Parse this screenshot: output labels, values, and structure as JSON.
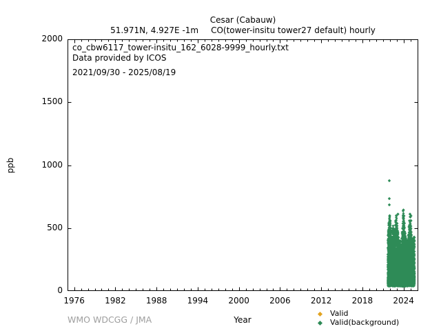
{
  "header": {
    "station": "Cesar (Cabauw)",
    "location": "51.971N, 4.927E -1m",
    "parameter": "CO(tower-insitu tower27 default) hourly"
  },
  "annotation": {
    "filename": "co_cbw6117_tower-insitu_162_6028-9999_hourly.txt",
    "provider": "Data provided by ICOS",
    "period": "2021/09/30 - 2025/08/19"
  },
  "footer": {
    "attribution": "WMO WDCGG / JMA",
    "xlabel": "Year"
  },
  "legend": [
    {
      "label": "Valid",
      "color": "#e2a321"
    },
    {
      "label": "Valid(background)",
      "color": "#2e8b57"
    }
  ],
  "colors": {
    "valid": "#e2a321",
    "valid_background": "#2e8b57",
    "axis": "#000000",
    "attribution_gray": "#9e9e9e"
  },
  "chart_data": {
    "type": "scatter",
    "title": "Cesar (Cabauw)",
    "xlabel": "Year",
    "ylabel": "ppb",
    "xlim": [
      1975.03,
      2026.14
    ],
    "ylim": [
      0,
      2000
    ],
    "xticks_major": [
      1976,
      1982,
      1988,
      1994,
      2000,
      2006,
      2012,
      2018,
      2024
    ],
    "xticks_minor_step": 1,
    "yticks_major": [
      0,
      500,
      1000,
      1500,
      2000
    ],
    "grid": false,
    "legend_position": "bottom-right",
    "marker": "diamond",
    "series": [
      {
        "name": "Valid(background)",
        "color": "#2e8b57",
        "x_start": 2021.747,
        "x_end": 2025.633,
        "value_floor_ppb_range": [
          38,
          95
        ],
        "dense_band_ppb": [
          90,
          260
        ],
        "monthly_envelope_max": [
          [
            2021.75,
            480
          ],
          [
            2021.85,
            540
          ],
          [
            2021.95,
            600
          ],
          [
            2022.05,
            560
          ],
          [
            2022.15,
            500
          ],
          [
            2022.25,
            430
          ],
          [
            2022.35,
            460
          ],
          [
            2022.45,
            520
          ],
          [
            2022.55,
            500
          ],
          [
            2022.65,
            450
          ],
          [
            2022.75,
            480
          ],
          [
            2022.85,
            560
          ],
          [
            2022.95,
            600
          ],
          [
            2023.05,
            540
          ],
          [
            2023.15,
            480
          ],
          [
            2023.25,
            430
          ],
          [
            2023.35,
            380
          ],
          [
            2023.45,
            360
          ],
          [
            2023.55,
            400
          ],
          [
            2023.65,
            370
          ],
          [
            2023.75,
            420
          ],
          [
            2023.85,
            500
          ],
          [
            2023.95,
            640
          ],
          [
            2024.05,
            600
          ],
          [
            2024.15,
            540
          ],
          [
            2024.25,
            460
          ],
          [
            2024.35,
            420
          ],
          [
            2024.45,
            400
          ],
          [
            2024.55,
            370
          ],
          [
            2024.65,
            400
          ],
          [
            2024.75,
            450
          ],
          [
            2024.85,
            560
          ],
          [
            2024.95,
            590
          ],
          [
            2025.05,
            520
          ],
          [
            2025.15,
            470
          ],
          [
            2025.25,
            420
          ],
          [
            2025.35,
            380
          ],
          [
            2025.45,
            400
          ],
          [
            2025.55,
            430
          ]
        ],
        "outliers": [
          [
            2021.93,
            876
          ],
          [
            2021.93,
            735
          ],
          [
            2021.94,
            686
          ],
          [
            2021.96,
            598
          ],
          [
            2023.2,
            610
          ],
          [
            2023.97,
            645
          ],
          [
            2024.0,
            600
          ],
          [
            2024.93,
            610
          ],
          [
            2025.08,
            597
          ],
          [
            2025.1,
            560
          ]
        ]
      },
      {
        "name": "Valid",
        "color": "#e2a321",
        "points": []
      }
    ]
  }
}
